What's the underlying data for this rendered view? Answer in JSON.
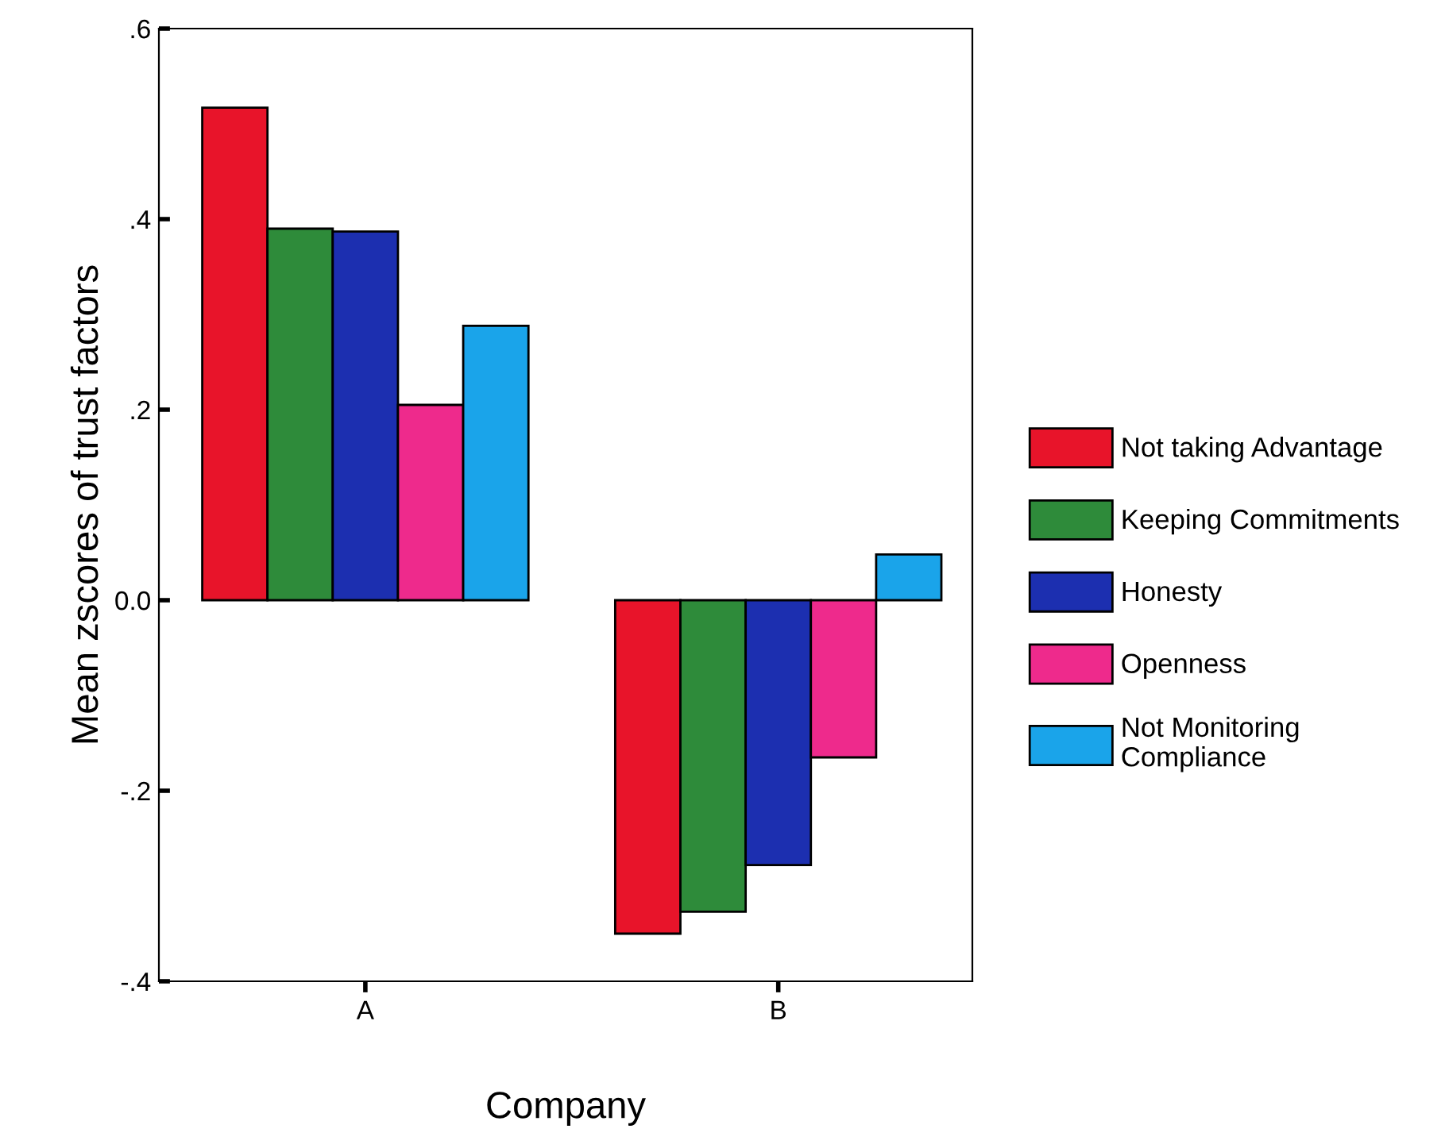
{
  "chart_data": {
    "type": "bar",
    "xlabel": "Company",
    "ylabel": "Mean zscores of trust factors",
    "categories": [
      "A",
      "B"
    ],
    "series": [
      {
        "name": "Not taking Advantage",
        "color": "#e8142a",
        "values": [
          0.517,
          -0.35
        ]
      },
      {
        "name": "Keeping Commitments",
        "color": "#2e8b3a",
        "values": [
          0.39,
          -0.327
        ]
      },
      {
        "name": "Honesty",
        "color": "#1c2fb0",
        "values": [
          0.387,
          -0.278
        ]
      },
      {
        "name": "Openness",
        "color": "#ee2a8c",
        "values": [
          0.205,
          -0.165
        ]
      },
      {
        "name": "Not Monitoring Compliance",
        "color": "#1aa4ea",
        "values": [
          0.288,
          0.048
        ]
      }
    ],
    "ylim": [
      -0.4,
      0.6
    ],
    "yticks": [
      {
        "value": -0.4,
        "label": "-.4"
      },
      {
        "value": -0.2,
        "label": "-.2"
      },
      {
        "value": 0,
        "label": "0.0"
      },
      {
        "value": 0.2,
        "label": ".2"
      },
      {
        "value": 0.4,
        "label": ".4"
      },
      {
        "value": 0.6,
        "label": ".6"
      }
    ],
    "grid": false,
    "legend": "right"
  }
}
